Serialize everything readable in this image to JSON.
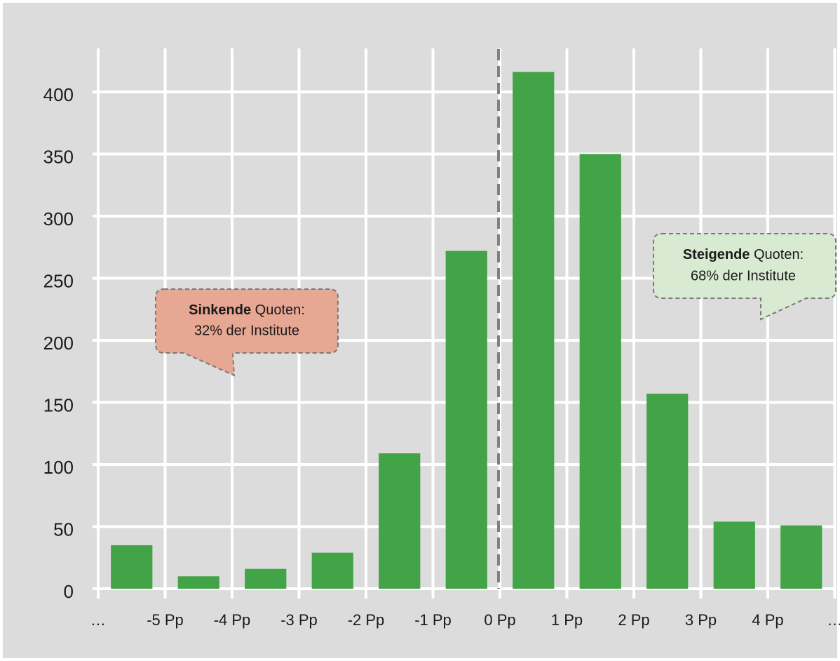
{
  "chart_data": {
    "type": "histogram",
    "bin_labels": [
      "…",
      "-5 Pp",
      "-4 Pp",
      "-3 Pp",
      "-2 Pp",
      "-1 Pp",
      "0 Pp",
      "1 Pp",
      "2 Pp",
      "3 Pp",
      "4 Pp",
      "…"
    ],
    "values": [
      35,
      10,
      16,
      29,
      109,
      272,
      416,
      350,
      157,
      54,
      51
    ],
    "color": "#43a347",
    "ylim": [
      0,
      435
    ],
    "yticks": [
      0,
      50,
      100,
      150,
      200,
      250,
      300,
      350,
      400
    ],
    "grid": true,
    "annotations": [
      {
        "bold": "Sinkende",
        "text": "Quoten:",
        "line2": "32% der Institute"
      },
      {
        "bold": "Steigende",
        "text": "Quoten:",
        "line2": "68% der Institute"
      }
    ]
  }
}
